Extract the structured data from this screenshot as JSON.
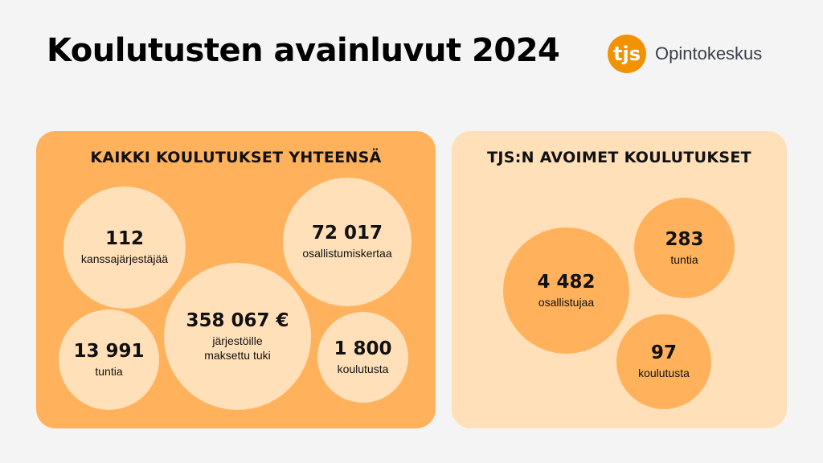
{
  "title": "Koulutusten avainluvut  2024",
  "logo": {
    "text": "Opintokeskus",
    "mark_letters": "tjs",
    "color": "#f39200"
  },
  "colors": {
    "accent_orange": "#ffb15c",
    "light_orange": "#ffe0b8"
  },
  "left_panel": {
    "heading": "KAIKKI KOULUTUKSET YHTEENSÄ",
    "stats": [
      {
        "value": "112",
        "label": "kanssajärjestäjää"
      },
      {
        "value": "72 017",
        "label": "osallistumiskertaa"
      },
      {
        "value": "358 067 €",
        "label": "järjestöille\nmaksettu tuki"
      },
      {
        "value": "13 991",
        "label": "tuntia"
      },
      {
        "value": "1 800",
        "label": "koulutusta"
      }
    ]
  },
  "right_panel": {
    "heading": "TJS:N AVOIMET KOULUTUKSET",
    "stats": [
      {
        "value": "4 482",
        "label": "osallistujaa"
      },
      {
        "value": "283",
        "label": "tuntia"
      },
      {
        "value": "97",
        "label": "koulutusta"
      }
    ]
  }
}
